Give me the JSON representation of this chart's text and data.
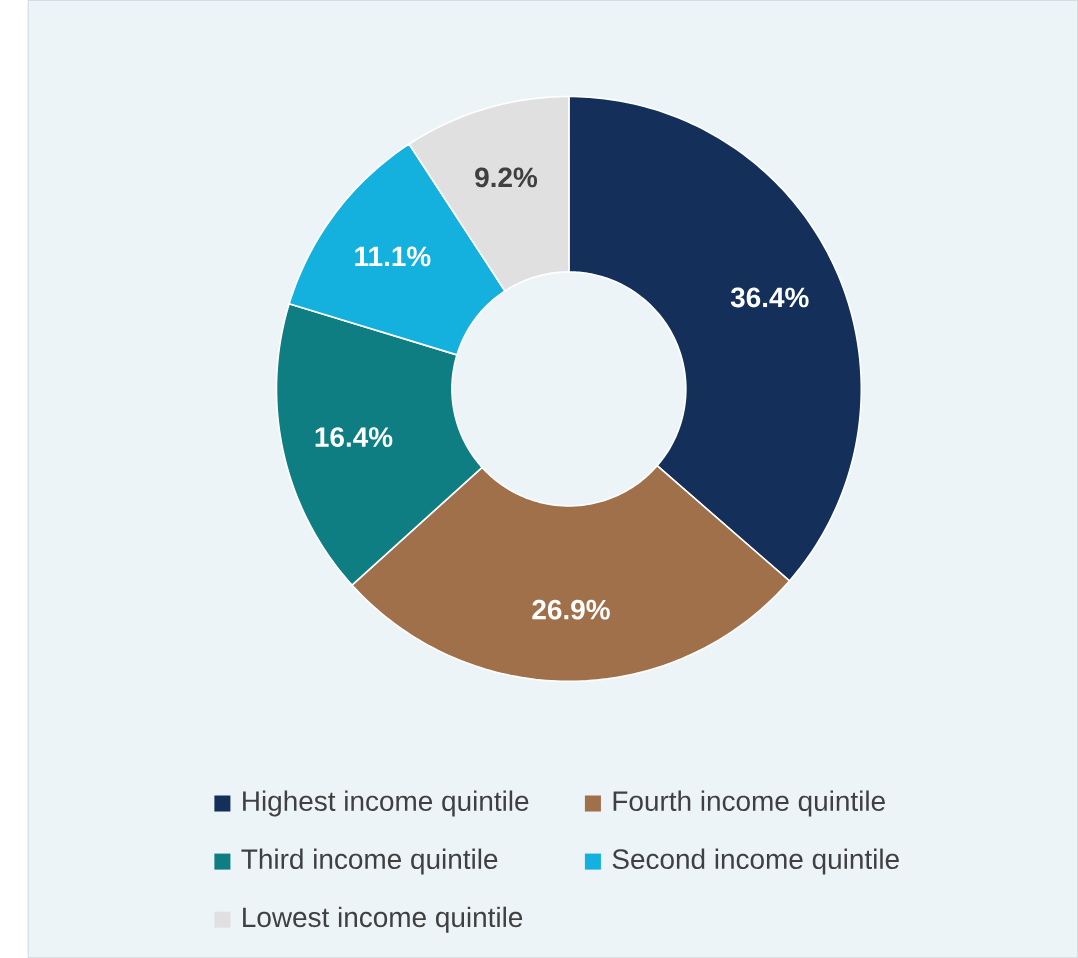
{
  "chart_data": {
    "type": "donut",
    "categories": [
      "Highest income quintile",
      "Fourth income quintile",
      "Third income quintile",
      "Second income quintile",
      "Lowest income quintile"
    ],
    "values": [
      36.4,
      26.9,
      16.4,
      11.1,
      9.2
    ],
    "colors": [
      "#14305a",
      "#a0704a",
      "#0e7e83",
      "#14b0de",
      "#e0e0e0"
    ],
    "value_labels": [
      "36.4%",
      "26.9%",
      "16.4%",
      "11.1%",
      "9.2%"
    ],
    "legend": "bottom"
  }
}
